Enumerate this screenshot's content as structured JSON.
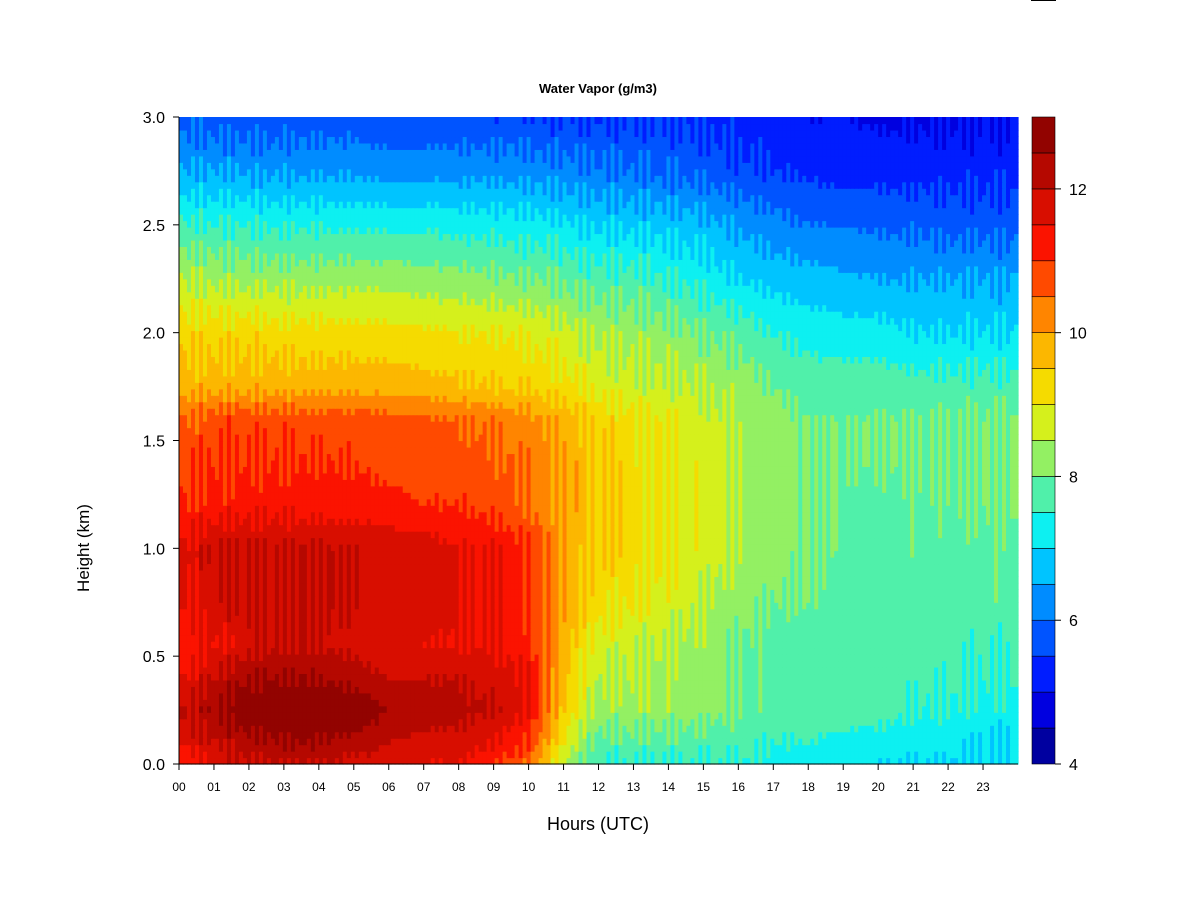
{
  "chart_data": {
    "type": "heatmap",
    "title": "Water Vapor (g/m3)",
    "xlabel": "Hours (UTC)",
    "ylabel": "Height (km)",
    "xlim": [
      0,
      24
    ],
    "ylim": [
      0.0,
      3.0
    ],
    "x_ticks": [
      "00",
      "01",
      "02",
      "03",
      "04",
      "05",
      "06",
      "07",
      "08",
      "09",
      "10",
      "11",
      "12",
      "13",
      "14",
      "15",
      "16",
      "17",
      "18",
      "19",
      "20",
      "21",
      "22",
      "23"
    ],
    "y_ticks": [
      "0.0",
      "0.5",
      "1.0",
      "1.5",
      "2.0",
      "2.5",
      "3.0"
    ],
    "colorbar": {
      "min": 4,
      "max": 13,
      "step": 0.5,
      "tick_values": [
        4,
        6,
        8,
        10,
        12
      ],
      "tick_labels": [
        "4",
        "6",
        "8",
        "10",
        "12"
      ]
    },
    "hours": [
      0,
      1,
      2,
      3,
      4,
      5,
      6,
      7,
      8,
      9,
      10,
      10.5,
      11,
      11.5,
      12,
      13,
      14,
      15,
      16,
      17,
      18,
      19,
      20,
      21,
      22,
      23,
      24
    ],
    "heights": [
      0.0,
      0.1,
      0.25,
      0.4,
      0.55,
      0.75,
      1.0,
      1.2,
      1.4,
      1.6,
      1.75,
      2.0,
      2.25,
      2.5,
      2.75,
      3.0
    ],
    "values": [
      [
        11.0,
        11.5,
        12.0,
        12.0,
        12.0,
        11.8,
        11.8,
        11.5,
        11.5,
        11.0,
        10.5,
        9.5,
        8.5,
        8.0,
        7.5,
        7.5,
        7.5,
        7.5,
        7.5,
        7.3,
        7.0,
        7.0,
        7.0,
        7.0,
        7.0,
        7.0,
        7.0
      ],
      [
        11.5,
        12.0,
        12.3,
        12.5,
        12.5,
        12.3,
        12.0,
        11.8,
        11.8,
        11.5,
        11.0,
        10.0,
        9.0,
        8.3,
        7.8,
        7.8,
        7.8,
        7.7,
        7.7,
        7.5,
        7.5,
        7.3,
        7.3,
        7.2,
        7.2,
        7.0,
        7.0
      ],
      [
        12.0,
        12.5,
        13.0,
        13.0,
        13.0,
        13.0,
        12.5,
        12.3,
        12.2,
        12.0,
        11.5,
        10.5,
        9.5,
        8.8,
        8.3,
        8.3,
        8.3,
        8.2,
        8.0,
        7.8,
        7.8,
        7.8,
        7.7,
        7.5,
        7.5,
        7.3,
        7.3
      ],
      [
        11.5,
        12.0,
        12.5,
        12.5,
        12.5,
        12.3,
        12.0,
        12.0,
        12.0,
        11.8,
        11.5,
        10.5,
        9.7,
        9.0,
        8.5,
        8.5,
        8.3,
        8.2,
        8.0,
        7.8,
        7.8,
        7.8,
        7.7,
        7.6,
        7.6,
        7.5,
        7.5
      ],
      [
        11.0,
        11.5,
        11.8,
        12.0,
        12.0,
        11.8,
        11.6,
        11.5,
        11.5,
        11.5,
        11.2,
        10.5,
        9.8,
        9.2,
        8.8,
        8.6,
        8.5,
        8.3,
        8.0,
        7.8,
        7.8,
        7.8,
        7.7,
        7.7,
        7.7,
        7.6,
        7.6
      ],
      [
        11.5,
        11.8,
        12.0,
        12.0,
        12.0,
        12.0,
        11.8,
        11.8,
        11.5,
        11.5,
        11.0,
        10.5,
        10.0,
        9.5,
        9.2,
        9.0,
        8.8,
        8.5,
        8.2,
        8.0,
        8.0,
        7.9,
        7.8,
        7.8,
        7.8,
        7.8,
        7.8
      ],
      [
        11.5,
        12.0,
        12.0,
        12.0,
        12.0,
        12.0,
        11.8,
        11.8,
        11.5,
        11.5,
        11.0,
        10.5,
        10.0,
        9.7,
        9.5,
        9.3,
        9.0,
        8.8,
        8.5,
        8.2,
        8.0,
        8.0,
        7.9,
        7.9,
        7.8,
        7.8,
        7.8
      ],
      [
        11.0,
        11.2,
        11.3,
        11.3,
        11.3,
        11.2,
        11.2,
        11.0,
        11.0,
        10.8,
        10.5,
        10.2,
        10.0,
        9.8,
        9.5,
        9.3,
        9.0,
        8.8,
        8.5,
        8.2,
        8.0,
        8.0,
        7.9,
        7.9,
        7.9,
        8.0,
        8.0
      ],
      [
        10.8,
        11.0,
        11.0,
        11.0,
        11.0,
        11.0,
        10.8,
        10.8,
        10.7,
        10.6,
        10.4,
        10.2,
        10.0,
        9.8,
        9.5,
        9.2,
        9.0,
        8.8,
        8.5,
        8.2,
        8.0,
        8.0,
        8.0,
        8.0,
        8.0,
        8.0,
        8.0
      ],
      [
        10.5,
        10.8,
        10.8,
        10.8,
        10.8,
        10.8,
        10.7,
        10.6,
        10.5,
        10.4,
        10.2,
        10.0,
        9.8,
        9.6,
        9.4,
        9.1,
        8.9,
        8.7,
        8.4,
        8.2,
        8.0,
        8.0,
        8.0,
        8.0,
        8.0,
        8.0,
        8.0
      ],
      [
        9.8,
        9.8,
        9.8,
        9.8,
        9.8,
        9.8,
        9.8,
        9.7,
        9.6,
        9.5,
        9.4,
        9.3,
        9.2,
        9.0,
        8.8,
        8.7,
        8.6,
        8.5,
        8.3,
        8.0,
        7.8,
        7.8,
        7.8,
        7.7,
        7.7,
        7.7,
        7.7
      ],
      [
        9.3,
        9.3,
        9.3,
        9.2,
        9.2,
        9.2,
        9.2,
        9.1,
        9.0,
        9.0,
        8.9,
        8.8,
        8.7,
        8.5,
        8.4,
        8.3,
        8.2,
        8.0,
        7.8,
        7.5,
        7.3,
        7.2,
        7.2,
        7.0,
        7.0,
        7.0,
        7.0
      ],
      [
        8.5,
        8.4,
        8.3,
        8.3,
        8.3,
        8.3,
        8.3,
        8.2,
        8.2,
        8.1,
        8.0,
        8.0,
        7.9,
        7.8,
        7.7,
        7.7,
        7.5,
        7.3,
        7.0,
        6.8,
        6.7,
        6.6,
        6.5,
        6.5,
        6.5,
        6.5,
        6.5
      ],
      [
        7.6,
        7.5,
        7.5,
        7.4,
        7.4,
        7.4,
        7.4,
        7.4,
        7.3,
        7.3,
        7.2,
        7.2,
        7.1,
        7.0,
        6.9,
        6.9,
        6.8,
        6.7,
        6.4,
        6.2,
        6.0,
        6.0,
        5.9,
        5.9,
        5.8,
        5.8,
        5.8
      ],
      [
        6.5,
        6.5,
        6.4,
        6.4,
        6.4,
        6.4,
        6.3,
        6.3,
        6.3,
        6.3,
        6.3,
        6.2,
        6.2,
        6.1,
        6.1,
        6.0,
        5.9,
        5.8,
        5.6,
        5.5,
        5.4,
        5.3,
        5.3,
        5.3,
        5.3,
        5.3,
        5.3
      ],
      [
        5.8,
        5.7,
        5.7,
        5.7,
        5.7,
        5.7,
        5.6,
        5.6,
        5.6,
        5.6,
        5.6,
        5.5,
        5.5,
        5.5,
        5.5,
        5.5,
        5.5,
        5.4,
        5.3,
        5.2,
        5.0,
        5.0,
        4.9,
        4.9,
        4.9,
        5.0,
        5.0
      ]
    ]
  }
}
